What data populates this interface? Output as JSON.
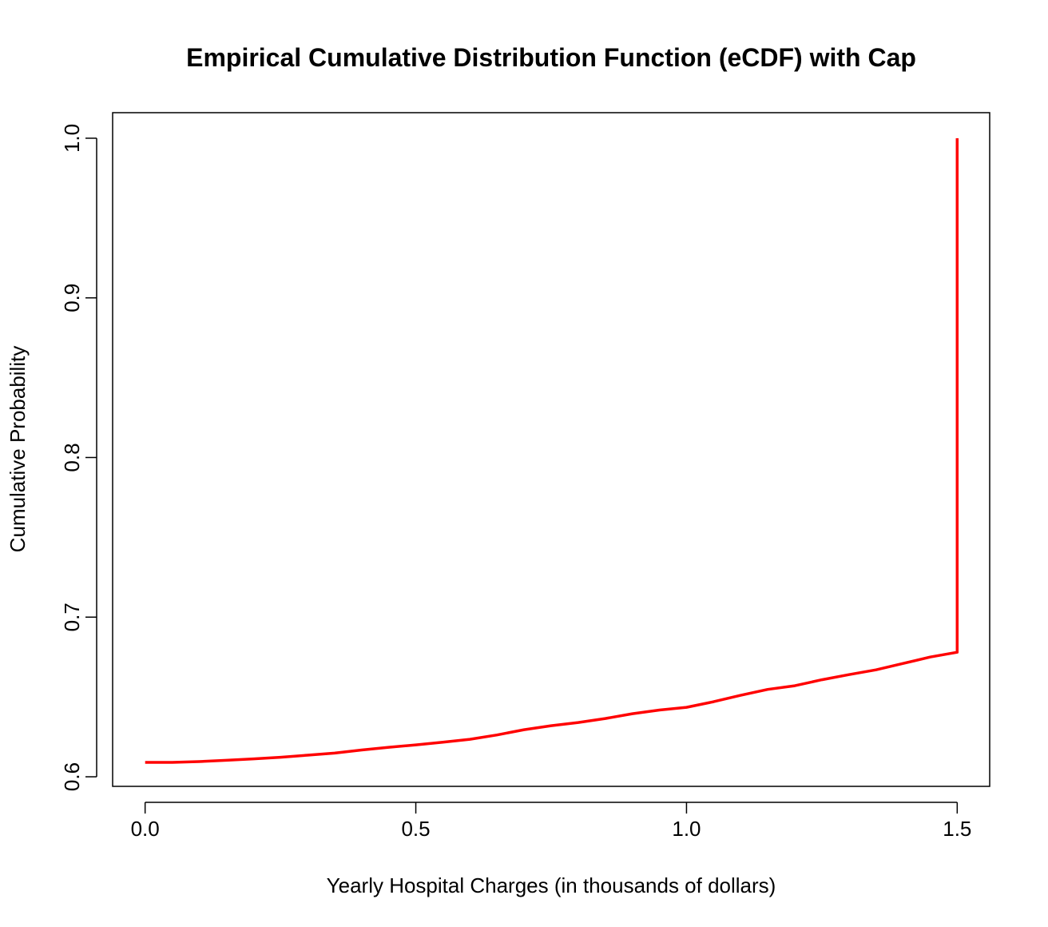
{
  "chart_data": {
    "type": "line",
    "title": "Empirical Cumulative Distribution Function (eCDF) with Cap",
    "xlabel": "Yearly Hospital Charges (in thousands of dollars)",
    "ylabel": "Cumulative Probability",
    "xlim": [
      -0.06,
      1.56
    ],
    "ylim": [
      0.594,
      1.016
    ],
    "xticks": [
      0.0,
      0.5,
      1.0,
      1.5
    ],
    "xtick_labels": [
      "0.0",
      "0.5",
      "1.0",
      "1.5"
    ],
    "yticks": [
      0.6,
      0.7,
      0.8,
      0.9,
      1.0
    ],
    "ytick_labels": [
      "0.6",
      "0.7",
      "0.8",
      "0.9",
      "1.0"
    ],
    "grid": false,
    "series": [
      {
        "color": "#ff0000",
        "x": [
          0.0,
          0.05,
          0.1,
          0.15,
          0.2,
          0.25,
          0.3,
          0.35,
          0.4,
          0.45,
          0.5,
          0.55,
          0.6,
          0.65,
          0.7,
          0.75,
          0.8,
          0.85,
          0.9,
          0.95,
          1.0,
          1.05,
          1.1,
          1.15,
          1.2,
          1.25,
          1.3,
          1.35,
          1.4,
          1.45,
          1.5,
          1.5
        ],
        "y": [
          0.609,
          0.609,
          0.6095,
          0.6103,
          0.6112,
          0.6122,
          0.6135,
          0.6148,
          0.6168,
          0.6185,
          0.62,
          0.6217,
          0.6235,
          0.6262,
          0.6295,
          0.632,
          0.634,
          0.6365,
          0.6395,
          0.6418,
          0.6435,
          0.647,
          0.651,
          0.6547,
          0.657,
          0.6608,
          0.664,
          0.667,
          0.671,
          0.675,
          0.678,
          1.0
        ]
      }
    ]
  }
}
